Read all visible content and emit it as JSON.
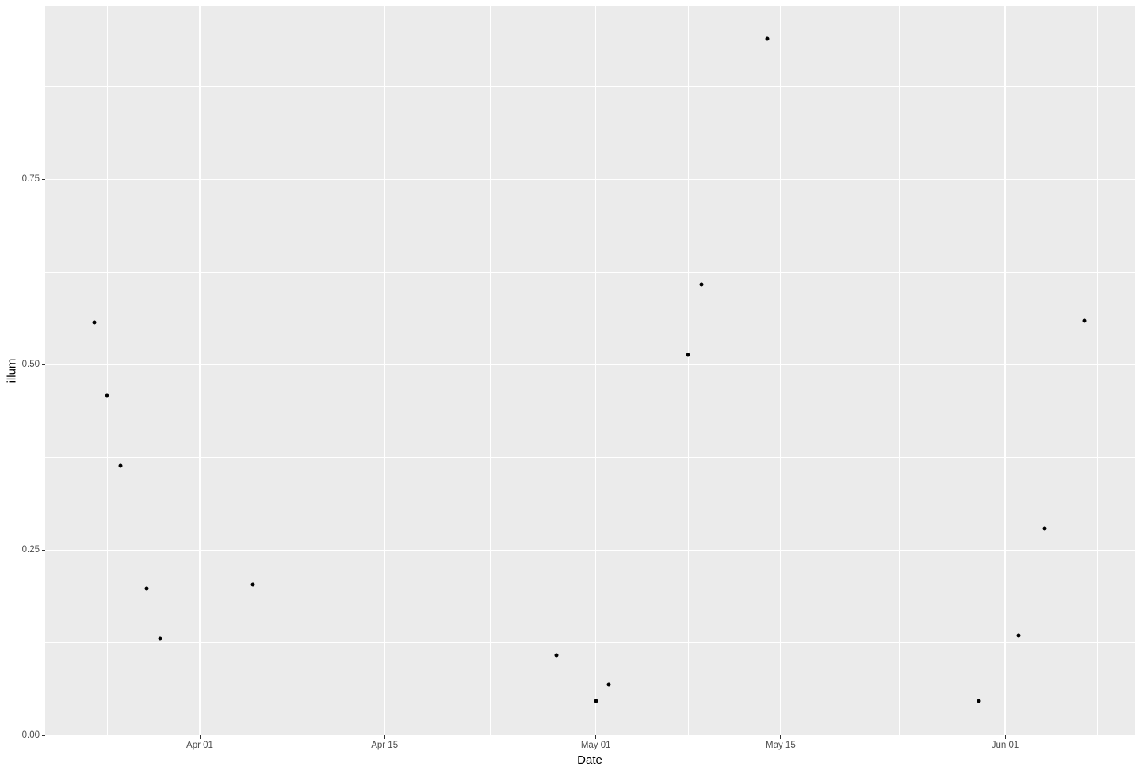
{
  "chart_data": {
    "type": "scatter",
    "title": "",
    "xlabel": "Date",
    "ylabel": "illum",
    "grid": true,
    "legend": "none",
    "panel_theme": "ggplot-grey",
    "x_tick_labels": [
      "Apr 01",
      "Apr 15",
      "May 01",
      "May 15",
      "Jun 01"
    ],
    "y_tick_labels": [
      "0.00",
      "0.25",
      "0.50",
      "0.75"
    ],
    "x_minor_gridlines": [
      "Mar 25",
      "Apr 08",
      "Apr 23",
      "May 08",
      "May 24",
      "Jun 08"
    ],
    "y_minor_gridlines": [
      0.125,
      0.375,
      0.625,
      0.875
    ],
    "xlim": [
      "Mar 20",
      "Jun 11"
    ],
    "ylim": [
      0.0,
      0.985
    ],
    "points": [
      {
        "date": "Mar 24",
        "illum": 0.557
      },
      {
        "date": "Mar 25",
        "illum": 0.459
      },
      {
        "date": "Mar 26",
        "illum": 0.364
      },
      {
        "date": "Mar 28",
        "illum": 0.198
      },
      {
        "date": "Mar 29",
        "illum": 0.131
      },
      {
        "date": "Apr 05",
        "illum": 0.204
      },
      {
        "date": "Apr 28",
        "illum": 0.108
      },
      {
        "date": "May 01",
        "illum": 0.047
      },
      {
        "date": "May 02",
        "illum": 0.069
      },
      {
        "date": "May 08",
        "illum": 0.514
      },
      {
        "date": "May 09",
        "illum": 0.609
      },
      {
        "date": "May 14",
        "illum": 0.94
      },
      {
        "date": "May 30",
        "illum": 0.046
      },
      {
        "date": "Jun 02",
        "illum": 0.135
      },
      {
        "date": "Jun 04",
        "illum": 0.279
      },
      {
        "date": "Jun 07",
        "illum": 0.559
      }
    ],
    "colors": {
      "panel_background": "#EBEBEB",
      "gridline": "#FFFFFF",
      "point": "#000000",
      "tick_label": "#4D4D4D",
      "axis_title": "#000000",
      "tick_mark": "#333333"
    }
  }
}
